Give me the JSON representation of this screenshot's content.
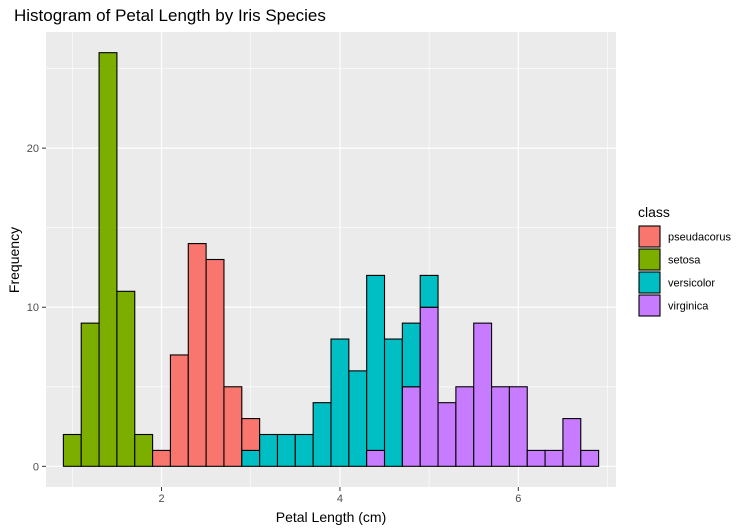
{
  "chart_data": {
    "type": "bar",
    "subtype": "stacked-histogram",
    "title": "Histogram of Petal Length by Iris Species",
    "xlabel": "Petal Length (cm)",
    "ylabel": "Frequency",
    "xlim": [
      0.705,
      7.095
    ],
    "ylim": [
      -1.3,
      27.3
    ],
    "x_ticks": [
      2,
      4,
      6
    ],
    "y_ticks": [
      0,
      10,
      20
    ],
    "bin_width": 0.2,
    "grid": true,
    "legend": {
      "title": "class",
      "position": "right"
    },
    "bin_centers": [
      1.0,
      1.2,
      1.4,
      1.6,
      1.8,
      2.0,
      2.2,
      2.4,
      2.6,
      2.8,
      3.0,
      3.2,
      3.4,
      3.6,
      3.8,
      4.0,
      4.2,
      4.4,
      4.6,
      4.8,
      5.0,
      5.2,
      5.4,
      5.6,
      5.8,
      6.0,
      6.2,
      6.4,
      6.6,
      6.8
    ],
    "series": [
      {
        "name": "pseudacorus",
        "color": "#F8766D",
        "values": [
          0,
          0,
          0,
          0,
          0,
          1,
          7,
          14,
          13,
          5,
          2,
          0,
          0,
          0,
          0,
          0,
          0,
          0,
          0,
          0,
          0,
          0,
          0,
          0,
          0,
          0,
          0,
          0,
          0,
          0
        ]
      },
      {
        "name": "setosa",
        "color": "#7CAE00",
        "values": [
          2,
          9,
          26,
          11,
          2,
          0,
          0,
          0,
          0,
          0,
          0,
          0,
          0,
          0,
          0,
          0,
          0,
          0,
          0,
          0,
          0,
          0,
          0,
          0,
          0,
          0,
          0,
          0,
          0,
          0
        ]
      },
      {
        "name": "versicolor",
        "color": "#00BFC4",
        "values": [
          0,
          0,
          0,
          0,
          0,
          0,
          0,
          0,
          0,
          0,
          1,
          2,
          2,
          2,
          4,
          8,
          6,
          11,
          8,
          4,
          2,
          0,
          0,
          0,
          0,
          0,
          0,
          0,
          0,
          0
        ]
      },
      {
        "name": "virginica",
        "color": "#C77CFF",
        "values": [
          0,
          0,
          0,
          0,
          0,
          0,
          0,
          0,
          0,
          0,
          0,
          0,
          0,
          0,
          0,
          0,
          0,
          1,
          0,
          5,
          10,
          4,
          5,
          9,
          5,
          5,
          1,
          1,
          3,
          1
        ]
      }
    ],
    "stack_order": [
      "virginica",
      "versicolor",
      "setosa",
      "pseudacorus"
    ]
  }
}
